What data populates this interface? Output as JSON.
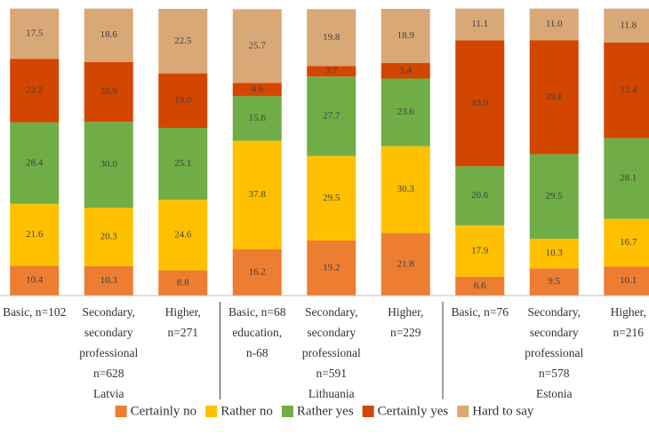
{
  "chart_data": {
    "type": "stacked_bar",
    "categories": [
      [
        "Basic, n=102"
      ],
      [
        "Secondary,",
        "secondary",
        "professional",
        "n=628"
      ],
      [
        "Higher,",
        "n=271"
      ],
      [
        "Basic, n=68",
        "education,",
        "n-68"
      ],
      [
        "Secondary,",
        "secondary",
        "professional",
        "n=591"
      ],
      [
        "Higher,",
        "n=229"
      ],
      [
        "Basic, n=76"
      ],
      [
        "Secondary,",
        "secondary",
        "professional",
        "n=578"
      ],
      [
        "Higher,",
        "n=216"
      ]
    ],
    "groups": [
      "Latvia",
      "Lithuania",
      "Estonia"
    ],
    "ylim": [
      0,
      100
    ],
    "series": [
      {
        "name": "Certainly no",
        "color": "#ed7d31",
        "values": [
          10.4,
          10.3,
          8.8,
          16.2,
          19.2,
          21.8,
          6.6,
          9.5,
          10.1
        ]
      },
      {
        "name": "Rather no",
        "color": "#ffc000",
        "values": [
          21.6,
          20.3,
          24.6,
          37.8,
          29.5,
          30.3,
          17.9,
          10.3,
          16.7
        ]
      },
      {
        "name": "Rather yes",
        "color": "#70ad47",
        "values": [
          28.4,
          30.0,
          25.1,
          15.6,
          27.7,
          23.6,
          20.6,
          29.5,
          28.1
        ],
        "value_labels": [
          "28.4",
          "30.0",
          "25.1",
          "15.6",
          "27.7",
          "23.6",
          "20.6",
          "29.5",
          "28.1"
        ]
      },
      {
        "name": "Certainly yes",
        "color": "#d24600",
        "values": [
          22.2,
          20.9,
          19.0,
          4.6,
          3.7,
          5.4,
          43.9,
          39.8,
          33.4
        ],
        "value_labels": [
          "22.2",
          "20.9",
          "19.0",
          "4.6",
          "3.7",
          "5.4",
          "43.9",
          "39.8",
          "33.4"
        ]
      },
      {
        "name": "Hard to say",
        "color": "#d9a877",
        "values": [
          17.5,
          18.6,
          22.5,
          25.7,
          19.8,
          18.9,
          11.1,
          11.0,
          11.8
        ],
        "value_labels": [
          "17.5",
          "18.6",
          "22.5",
          "25.7",
          "19.8",
          "18.9",
          "11.1",
          "11.0",
          "11.8"
        ]
      }
    ]
  }
}
